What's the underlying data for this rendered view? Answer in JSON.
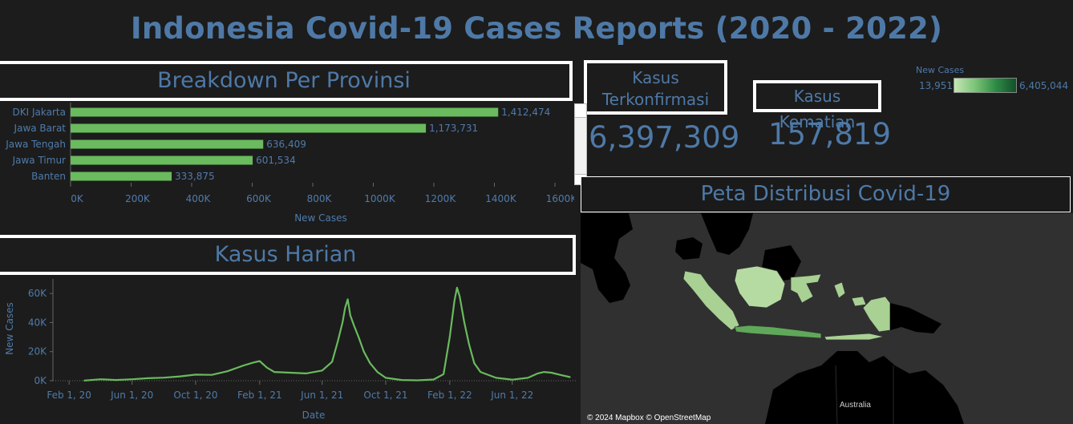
{
  "title": "Indonesia Covid-19 Cases Reports (2020 - 2022)",
  "province_panel": {
    "title": "Breakdown Per Provinsi"
  },
  "daily_panel": {
    "title": "Kasus Harian"
  },
  "map_panel": {
    "title": "Peta Distribusi Covid-19",
    "credit": "© 2024 Mapbox © OpenStreetMap",
    "label_australia": "Australia"
  },
  "kpi": {
    "confirmed_label": "Kasus Terkonfirmasi",
    "confirmed_value": "6,397,309",
    "deaths_label": "Kasus Kematian",
    "deaths_value": "157,819"
  },
  "legend": {
    "title": "New Cases",
    "min": "13,951",
    "max": "6,405,044",
    "colors": [
      "#c5e6b3",
      "#12502a"
    ]
  },
  "colors": {
    "accent": "#4e79a7",
    "bar": "#6aba5e",
    "background": "#1c1c1c"
  },
  "chart_data": [
    {
      "type": "bar",
      "orientation": "horizontal",
      "categories": [
        "DKI Jakarta",
        "Jawa Barat",
        "Jawa Tengah",
        "Jawa Timur",
        "Banten"
      ],
      "values": [
        1412474,
        1173731,
        636409,
        601534,
        333875
      ],
      "value_labels": [
        "1,412,474",
        "1,173,731",
        "636,409",
        "601,534",
        "333,875"
      ],
      "xlabel": "New Cases",
      "xticks": [
        "0K",
        "200K",
        "400K",
        "600K",
        "800K",
        "1000K",
        "1200K",
        "1400K",
        "1600K"
      ],
      "xlim": [
        0,
        1600000
      ]
    },
    {
      "type": "line",
      "xlabel": "Date",
      "ylabel": "New Cases",
      "xticks": [
        "Feb 1, 20",
        "Jun 1, 20",
        "Oct 1, 20",
        "Feb 1, 21",
        "Jun 1, 21",
        "Oct 1, 21",
        "Feb 1, 22",
        "Jun 1, 22"
      ],
      "yticks": [
        "0K",
        "20K",
        "40K",
        "60K"
      ],
      "ylim": [
        0,
        70000
      ],
      "x": [
        "2020-03-01",
        "2020-04-01",
        "2020-05-01",
        "2020-06-01",
        "2020-07-01",
        "2020-08-01",
        "2020-09-01",
        "2020-10-01",
        "2020-11-01",
        "2020-12-01",
        "2021-01-01",
        "2021-01-20",
        "2021-02-01",
        "2021-02-15",
        "2021-03-01",
        "2021-04-01",
        "2021-05-01",
        "2021-06-01",
        "2021-06-20",
        "2021-07-01",
        "2021-07-10",
        "2021-07-15",
        "2021-07-20",
        "2021-07-25",
        "2021-08-01",
        "2021-08-10",
        "2021-08-20",
        "2021-09-01",
        "2021-09-15",
        "2021-10-01",
        "2021-11-01",
        "2021-12-01",
        "2022-01-01",
        "2022-01-20",
        "2022-02-01",
        "2022-02-10",
        "2022-02-15",
        "2022-02-20",
        "2022-03-01",
        "2022-03-10",
        "2022-03-20",
        "2022-04-01",
        "2022-05-01",
        "2022-06-01",
        "2022-07-01",
        "2022-07-20",
        "2022-08-01",
        "2022-08-15",
        "2022-09-01",
        "2022-09-20"
      ],
      "y": [
        100,
        1000,
        500,
        1000,
        1700,
        2100,
        3000,
        4200,
        4000,
        6500,
        10500,
        12500,
        13500,
        9000,
        6000,
        5500,
        5000,
        7000,
        13000,
        27000,
        40000,
        50000,
        56000,
        45000,
        38000,
        30000,
        20000,
        12000,
        6000,
        2000,
        500,
        300,
        800,
        4500,
        30000,
        55000,
        64000,
        58000,
        40000,
        25000,
        12000,
        6000,
        2000,
        700,
        2000,
        5000,
        6000,
        5500,
        4000,
        2500
      ]
    }
  ]
}
